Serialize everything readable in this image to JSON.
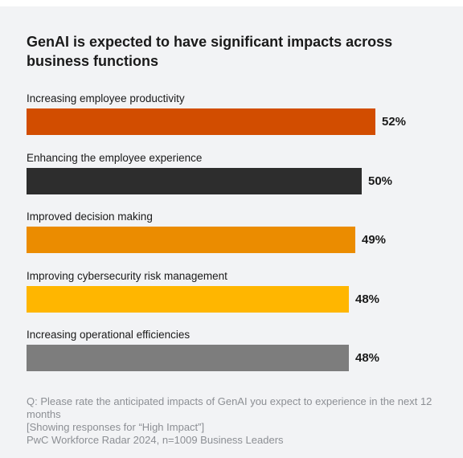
{
  "chart_data": {
    "type": "bar",
    "orientation": "horizontal",
    "title": "GenAI is expected to have significant impacts across business functions",
    "categories": [
      "Increasing employee productivity",
      "Enhancing the employee experience",
      "Improved decision making",
      "Improving cybersecurity risk management",
      "Increasing operational efficiencies"
    ],
    "values": [
      52,
      50,
      49,
      48,
      48
    ],
    "value_labels": [
      "52%",
      "50%",
      "49%",
      "48%",
      "48%"
    ],
    "colors": [
      "#d24d00",
      "#2d2d2d",
      "#eb8c00",
      "#ffb600",
      "#7d7d7d"
    ],
    "xlim": [
      0,
      100
    ],
    "grid": false,
    "legend": "none"
  },
  "footnote": {
    "question": "Q: Please rate the anticipated impacts of GenAI you expect to experience in the next 12 months",
    "note": "[Showing responses for “High Impact”]",
    "source": "PwC Workforce Radar 2024, n=1009 Business Leaders"
  }
}
